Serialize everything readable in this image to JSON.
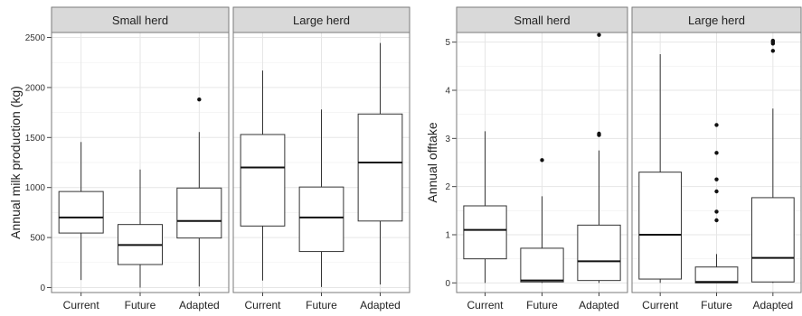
{
  "chart_data": [
    {
      "type": "box",
      "ylabel": "Annual milk production (kg)",
      "ylim": [
        -50,
        2550
      ],
      "yticks": [
        0,
        500,
        1000,
        1500,
        2000,
        2500
      ],
      "categories": [
        "Current",
        "Future",
        "Adapted"
      ],
      "facets": [
        {
          "label": "Small herd",
          "boxes": [
            {
              "category": "Current",
              "min": 75,
              "q1": 545,
              "median": 700,
              "q3": 960,
              "max": 1455,
              "outliers": []
            },
            {
              "category": "Future",
              "min": 0,
              "q1": 230,
              "median": 425,
              "q3": 630,
              "max": 1180,
              "outliers": []
            },
            {
              "category": "Adapted",
              "min": 10,
              "q1": 495,
              "median": 665,
              "q3": 995,
              "max": 1555,
              "outliers": [
                1880
              ]
            }
          ]
        },
        {
          "label": "Large herd",
          "boxes": [
            {
              "category": "Current",
              "min": 70,
              "q1": 615,
              "median": 1200,
              "q3": 1530,
              "max": 2170,
              "outliers": []
            },
            {
              "category": "Future",
              "min": 5,
              "q1": 360,
              "median": 700,
              "q3": 1005,
              "max": 1780,
              "outliers": []
            },
            {
              "category": "Adapted",
              "min": 30,
              "q1": 665,
              "median": 1250,
              "q3": 1735,
              "max": 2445,
              "outliers": []
            }
          ]
        }
      ]
    },
    {
      "type": "box",
      "ylabel": "Annual offtake",
      "ylim": [
        -0.2,
        5.2
      ],
      "yticks": [
        0,
        1,
        2,
        3,
        4,
        5
      ],
      "categories": [
        "Current",
        "Future",
        "Adapted"
      ],
      "facets": [
        {
          "label": "Small herd",
          "boxes": [
            {
              "category": "Current",
              "min": 0,
              "q1": 0.5,
              "median": 1.1,
              "q3": 1.6,
              "max": 3.15,
              "outliers": []
            },
            {
              "category": "Future",
              "min": 0,
              "q1": 0.02,
              "median": 0.05,
              "q3": 0.72,
              "max": 1.8,
              "outliers": [
                2.55
              ]
            },
            {
              "category": "Adapted",
              "min": 0,
              "q1": 0.05,
              "median": 0.45,
              "q3": 1.2,
              "max": 2.75,
              "outliers": [
                3.07,
                3.1,
                5.15
              ]
            }
          ]
        },
        {
          "label": "Large herd",
          "boxes": [
            {
              "category": "Current",
              "min": 0,
              "q1": 0.08,
              "median": 1.0,
              "q3": 2.3,
              "max": 4.75,
              "outliers": []
            },
            {
              "category": "Future",
              "min": 0,
              "q1": 0.0,
              "median": 0.02,
              "q3": 0.33,
              "max": 0.6,
              "outliers": [
                1.3,
                1.48,
                1.9,
                2.15,
                2.7,
                3.28
              ]
            },
            {
              "category": "Adapted",
              "min": 0,
              "q1": 0.02,
              "median": 0.52,
              "q3": 1.77,
              "max": 3.62,
              "outliers": [
                4.82,
                4.97,
                5.0,
                5.03
              ]
            }
          ]
        }
      ]
    }
  ]
}
